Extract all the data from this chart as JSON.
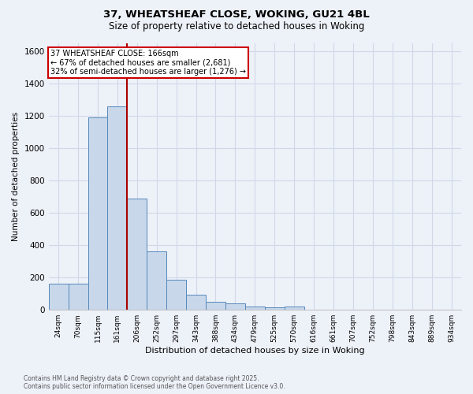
{
  "title1": "37, WHEATSHEAF CLOSE, WOKING, GU21 4BL",
  "title2": "Size of property relative to detached houses in Woking",
  "xlabel": "Distribution of detached houses by size in Woking",
  "ylabel": "Number of detached properties",
  "categories": [
    "24sqm",
    "70sqm",
    "115sqm",
    "161sqm",
    "206sqm",
    "252sqm",
    "297sqm",
    "343sqm",
    "388sqm",
    "434sqm",
    "479sqm",
    "525sqm",
    "570sqm",
    "616sqm",
    "661sqm",
    "707sqm",
    "752sqm",
    "798sqm",
    "843sqm",
    "889sqm",
    "934sqm"
  ],
  "values": [
    160,
    160,
    1190,
    1260,
    690,
    360,
    185,
    95,
    50,
    40,
    20,
    15,
    20,
    0,
    0,
    0,
    0,
    0,
    0,
    0,
    0
  ],
  "bar_color": "#c8d8ea",
  "bar_edge_color": "#5588bb",
  "vline_color": "#aa0000",
  "vline_index": 3.5,
  "annotation_line1": "37 WHEATSHEAF CLOSE: 166sqm",
  "annotation_line2": "← 67% of detached houses are smaller (2,681)",
  "annotation_line3": "32% of semi-detached houses are larger (1,276) →",
  "annotation_box_color": "#cc0000",
  "ylim": [
    0,
    1650
  ],
  "yticks": [
    0,
    200,
    400,
    600,
    800,
    1000,
    1200,
    1400,
    1600
  ],
  "footer1": "Contains HM Land Registry data © Crown copyright and database right 2025.",
  "footer2": "Contains public sector information licensed under the Open Government Licence v3.0.",
  "bg_color": "#edf1f8",
  "plot_bg_color": "#edf1f8",
  "grid_color": "#d0d8e8"
}
